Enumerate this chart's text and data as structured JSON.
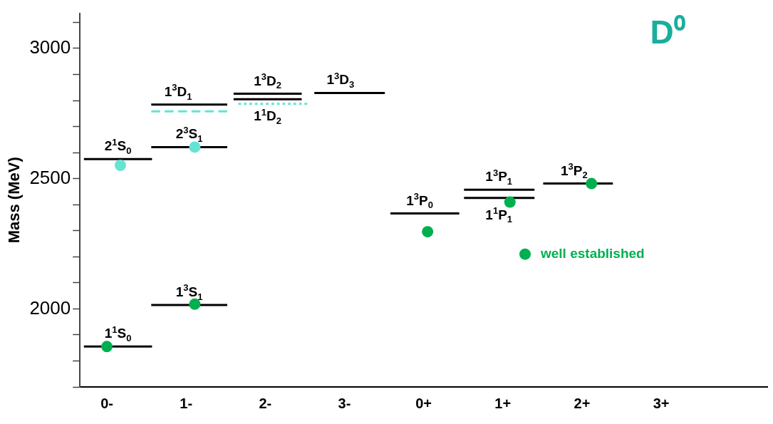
{
  "chart_data": {
    "type": "line",
    "title": "D⁰",
    "ylabel": "Mass (MeV)",
    "xlim": [
      -0.34,
      8.34
    ],
    "xticks": [
      {
        "value": 0,
        "label": "0-"
      },
      {
        "value": 1,
        "label": "1-"
      },
      {
        "value": 2,
        "label": "2-"
      },
      {
        "value": 3,
        "label": "3-"
      },
      {
        "value": 4,
        "label": "0+"
      },
      {
        "value": 5,
        "label": "1+"
      },
      {
        "value": 6,
        "label": "2+"
      },
      {
        "value": 7,
        "label": "3+"
      }
    ],
    "ylim": [
      1700,
      3135
    ],
    "yticks": [
      {
        "value": 1700,
        "label": null
      },
      {
        "value": 1800,
        "label": null
      },
      {
        "value": 1900,
        "label": null
      },
      2000,
      {
        "value": 2100,
        "label": null
      },
      {
        "value": 2200,
        "label": null
      },
      {
        "value": 2300,
        "label": null
      },
      {
        "value": 2400,
        "label": null
      },
      2500,
      {
        "value": 2600,
        "label": null
      },
      {
        "value": 2700,
        "label": null
      },
      {
        "value": 2800,
        "label": null
      },
      {
        "value": 2900,
        "label": null
      },
      3000,
      {
        "value": 3100,
        "label": null
      }
    ],
    "grid": false,
    "legend": "right",
    "marker": "none",
    "line_style": "solid",
    "series": [
      {
        "type": "line",
        "color": "#000000",
        "x": [
          -0.29,
          0.57
        ],
        "values": [
          1855,
          1855
        ]
      },
      {
        "type": "line",
        "color": "#000000",
        "x": [
          -0.29,
          0.57
        ],
        "values": [
          2575,
          2575
        ]
      },
      {
        "type": "line",
        "color": "#000000",
        "x": [
          0.56,
          1.52
        ],
        "values": [
          2015,
          2015
        ]
      },
      {
        "type": "line",
        "color": "#000000",
        "x": [
          0.56,
          1.52
        ],
        "values": [
          2621,
          2621
        ]
      },
      {
        "type": "line",
        "color": "#000000",
        "x": [
          0.56,
          1.52
        ],
        "values": [
          2784,
          2784
        ]
      },
      {
        "type": "line",
        "color": "#66e3d3",
        "line_style": "dashed",
        "x": [
          0.56,
          1.52
        ],
        "values": [
          2758,
          2758
        ]
      },
      {
        "type": "line",
        "color": "#000000",
        "x": [
          1.6,
          2.46
        ],
        "values": [
          2826,
          2826
        ]
      },
      {
        "type": "line",
        "color": "#000000",
        "x": [
          1.6,
          2.46
        ],
        "values": [
          2805,
          2805
        ]
      },
      {
        "type": "line",
        "color": "#66e3d3",
        "line_style": "dotted",
        "x": [
          1.66,
          2.53
        ],
        "values": [
          2787,
          2787
        ]
      },
      {
        "type": "line",
        "color": "#000000",
        "x": [
          2.62,
          3.51
        ],
        "values": [
          2829,
          2829
        ]
      },
      {
        "type": "line",
        "color": "#000000",
        "x": [
          3.58,
          4.45
        ],
        "values": [
          2366,
          2366
        ]
      },
      {
        "type": "line",
        "color": "#000000",
        "x": [
          4.51,
          5.4
        ],
        "values": [
          2457,
          2457
        ]
      },
      {
        "type": "line",
        "color": "#000000",
        "x": [
          4.51,
          5.4
        ],
        "values": [
          2426,
          2426
        ]
      },
      {
        "type": "line",
        "color": "#000000",
        "x": [
          5.51,
          6.39
        ],
        "values": [
          2481,
          2481
        ]
      },
      {
        "type": "scatter",
        "marker": "circle",
        "color": "#66e3d3",
        "x": [
          0.17,
          1.11
        ],
        "values": [
          2551,
          2621
        ]
      },
      {
        "type": "scatter",
        "marker": "circle",
        "name": "well established",
        "color": "#00b050",
        "x": [
          0,
          1.11,
          4.05,
          5.09,
          6.12
        ],
        "values": [
          1855,
          2018,
          2296,
          2410,
          2481
        ]
      }
    ],
    "annotations": [
      {
        "text": "1$^{1}$S$_{0}$",
        "x": 0.14,
        "y": 1855
      },
      {
        "text": "2$^{1}$S$_{0}$",
        "x": 0.14,
        "y": 2575
      },
      {
        "text": "1$^{3}$S$_{1}$",
        "x": 1.04,
        "y": 2015
      },
      {
        "text": "2$^{3}$S$_{1}$",
        "x": 1.04,
        "y": 2621
      },
      {
        "text": "1$^{3}$D$_{1}$",
        "x": 0.9,
        "y": 2784
      },
      {
        "text": "1$^{3}$D$_{2}$",
        "x": 2.03,
        "y": 2826
      },
      {
        "text": "1$^{1}$D$_{2}$",
        "x": 2.03,
        "y": 2805
      },
      {
        "text": "1$^{3}$D$_{3}$",
        "x": 2.95,
        "y": 2829
      },
      {
        "text": "1$^{3}$P$_{0}$",
        "x": 3.95,
        "y": 2366
      },
      {
        "text": "1$^{3}$P$_{1}$",
        "x": 4.95,
        "y": 2457
      },
      {
        "text": "1$^{1}$P$_{1}$",
        "x": 4.95,
        "y": 2426
      },
      {
        "text": "1$^{3}$P$_{2}$",
        "x": 5.9,
        "y": 2481
      }
    ]
  }
}
